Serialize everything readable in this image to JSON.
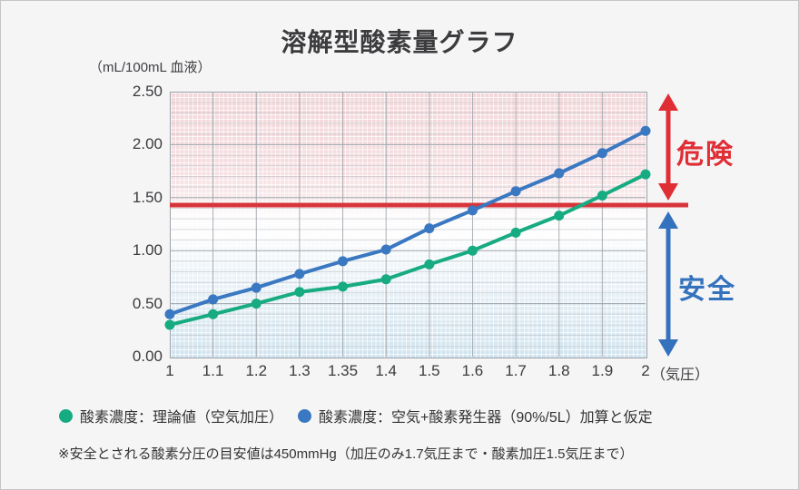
{
  "chart_data": {
    "type": "line",
    "title": "溶解型酸素量グラフ",
    "y_unit_label": "（mL/100mL 血液）",
    "x_unit_label": "（気圧）",
    "categories": [
      "1",
      "1.1",
      "1.2",
      "1.3",
      "1.35",
      "1.4",
      "1.5",
      "1.6",
      "1.7",
      "1.8",
      "1.9",
      "2"
    ],
    "y_ticks": [
      "0.00",
      "0.50",
      "1.00",
      "1.50",
      "2.00",
      "2.50"
    ],
    "ylim": [
      0,
      2.5
    ],
    "grid": true,
    "legend_position": "bottom",
    "series": [
      {
        "name": "酸素濃度：理論値（空気加圧）",
        "color": "#17ab82",
        "values": [
          0.3,
          0.4,
          0.5,
          0.61,
          0.66,
          0.73,
          0.87,
          1.0,
          1.17,
          1.33,
          1.52,
          1.72
        ]
      },
      {
        "name": "酸素濃度：空気+酸素発生器（90%/5L）加算と仮定",
        "color": "#3a78c2",
        "values": [
          0.4,
          0.54,
          0.65,
          0.78,
          0.9,
          1.01,
          1.21,
          1.38,
          1.56,
          1.73,
          1.92,
          2.13
        ]
      }
    ],
    "threshold": {
      "value": 1.43,
      "color": "#d8353b"
    },
    "zones": [
      {
        "label": "危険",
        "color": "#e02e35"
      },
      {
        "label": "安全",
        "color": "#3472bd"
      }
    ]
  },
  "footnote": "※安全とされる酸素分圧の目安値は450mmHg（加圧のみ1.7気圧まで・酸素加圧1.5気圧まで）"
}
